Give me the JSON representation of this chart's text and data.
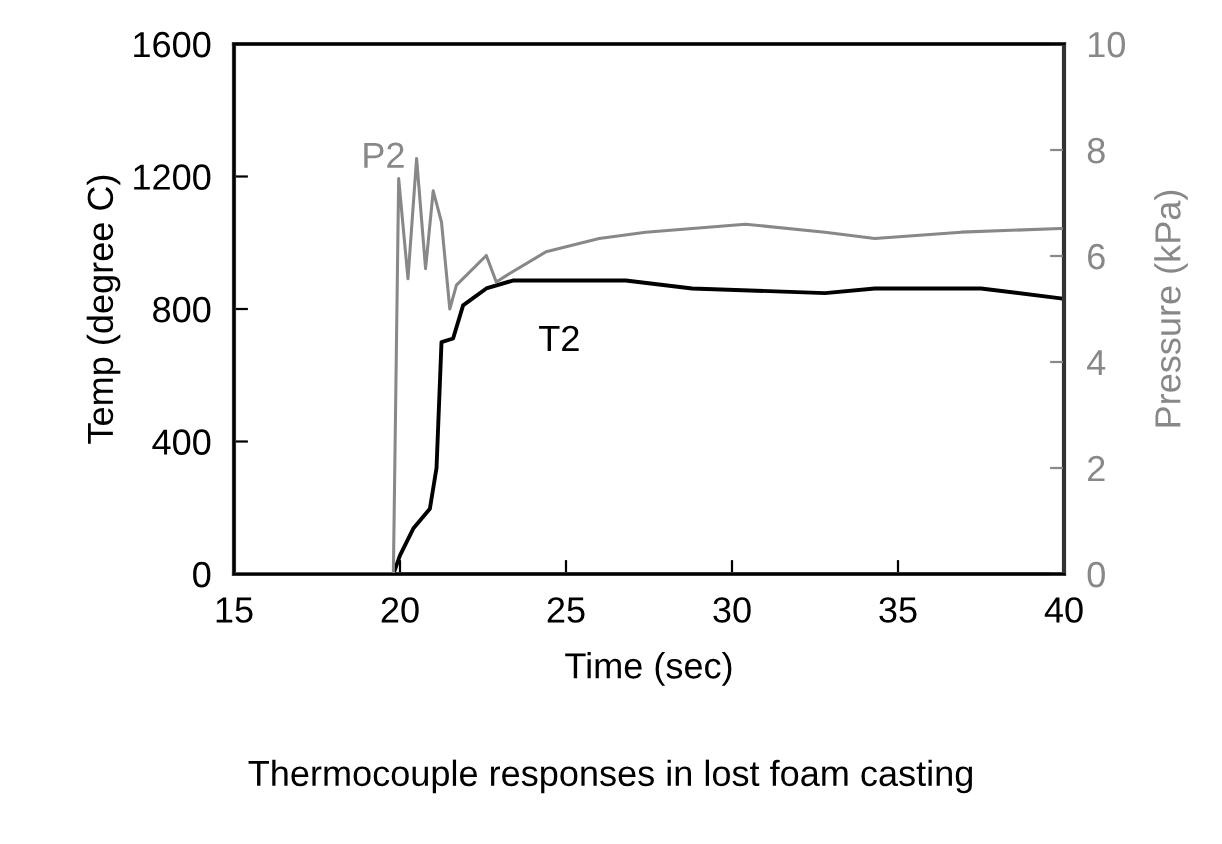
{
  "chart_data": {
    "type": "line",
    "xlabel": "Time (sec)",
    "ylabel": "Temp (degree C)",
    "y2label": "Pressure (kPa)",
    "annotations": [
      "Thermocouple responses in lost foam casting"
    ],
    "xlim": [
      15,
      40
    ],
    "xticks": [
      15,
      20,
      25,
      30,
      35,
      40
    ],
    "ylim": [
      0,
      1600
    ],
    "yticks": [
      0,
      400,
      800,
      1200,
      1600
    ],
    "y2lim": [
      0,
      10
    ],
    "y2ticks": [
      0,
      2,
      4,
      6,
      8,
      10
    ],
    "grid": false,
    "legend": false,
    "marker": "none",
    "line_style": "solid",
    "series": [
      {
        "name": "T2",
        "color": "#000000",
        "x": [
          15,
          19.8,
          20.0,
          20.4,
          20.9,
          21.1,
          21.25,
          21.6,
          21.9,
          22.6,
          23.4,
          24.8,
          26.8,
          28.8,
          32.8,
          34.3,
          37.5,
          39.9,
          40
        ],
        "values": [
          0,
          0,
          56,
          137,
          197,
          320,
          700,
          711,
          811,
          862,
          886,
          886,
          886,
          862,
          848,
          862,
          862,
          832,
          830
        ]
      },
      {
        "name": "P2",
        "color": "#888888",
        "axis": "y2",
        "x": [
          15,
          19.8,
          19.96,
          20.24,
          20.5,
          20.77,
          21.0,
          21.25,
          21.5,
          21.7,
          22.6,
          22.9,
          23.2,
          24.4,
          26.0,
          27.4,
          30.4,
          32.8,
          34.3,
          36.9,
          39.9,
          40
        ],
        "values": [
          0,
          0,
          7.46,
          5.57,
          7.84,
          5.76,
          7.23,
          6.64,
          5.0,
          5.45,
          6.01,
          5.51,
          5.63,
          6.08,
          6.33,
          6.45,
          6.6,
          6.45,
          6.33,
          6.45,
          6.52,
          6.52
        ]
      }
    ]
  }
}
